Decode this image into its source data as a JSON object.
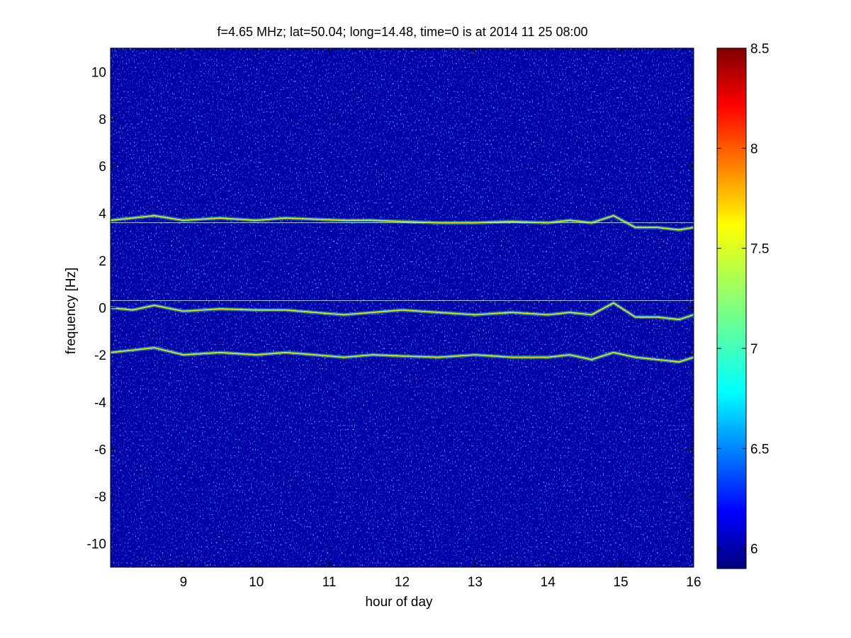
{
  "chart_data": {
    "type": "heatmap",
    "title": "f=4.65 MHz;  lat=50.04; long=14.48, time=0 is at 2014 11 25 08:00",
    "xlabel": "hour of day",
    "ylabel": "frequency [Hz]",
    "xlim": [
      8,
      16
    ],
    "ylim": [
      -11,
      11
    ],
    "x_ticks": [
      "9",
      "10",
      "11",
      "12",
      "13",
      "14",
      "15",
      "16"
    ],
    "x_tick_values": [
      9,
      10,
      11,
      12,
      13,
      14,
      15,
      16
    ],
    "y_ticks": [
      "10",
      "8",
      "6",
      "4",
      "2",
      "0",
      "-2",
      "-4",
      "-6",
      "-8",
      "-10"
    ],
    "y_tick_values": [
      10,
      8,
      6,
      4,
      2,
      0,
      -2,
      -4,
      -6,
      -8,
      -10
    ],
    "colormap": "jet",
    "colorbar": {
      "min": 5.9,
      "max": 8.5,
      "ticks": [
        "6",
        "6.5",
        "7",
        "7.5",
        "8",
        "8.5"
      ],
      "tick_values": [
        6,
        6.5,
        7,
        7.5,
        8,
        8.5
      ]
    },
    "background_level": 6.0,
    "traces": [
      {
        "x": [
          8.0,
          8.3,
          8.6,
          9.0,
          9.5,
          10.0,
          10.4,
          10.8,
          11.2,
          11.6,
          12.0,
          12.5,
          13.0,
          13.5,
          14.0,
          14.3,
          14.6,
          14.9,
          15.2,
          15.5,
          15.8,
          16.0
        ],
        "y": [
          3.7,
          3.8,
          3.9,
          3.7,
          3.8,
          3.7,
          3.8,
          3.75,
          3.7,
          3.7,
          3.65,
          3.6,
          3.6,
          3.65,
          3.6,
          3.7,
          3.6,
          3.9,
          3.4,
          3.4,
          3.3,
          3.4
        ]
      },
      {
        "x": [
          8.0,
          8.3,
          8.6,
          9.0,
          9.5,
          10.0,
          10.4,
          10.8,
          11.2,
          11.6,
          12.0,
          12.5,
          13.0,
          13.5,
          14.0,
          14.3,
          14.6,
          14.9,
          15.2,
          15.5,
          15.8,
          16.0
        ],
        "y": [
          0.0,
          -0.1,
          0.1,
          -0.15,
          -0.05,
          -0.1,
          -0.1,
          -0.2,
          -0.3,
          -0.2,
          -0.1,
          -0.2,
          -0.3,
          -0.2,
          -0.3,
          -0.2,
          -0.3,
          0.2,
          -0.4,
          -0.4,
          -0.5,
          -0.3
        ]
      },
      {
        "x": [
          8.0,
          8.3,
          8.6,
          9.0,
          9.5,
          10.0,
          10.4,
          10.8,
          11.2,
          11.6,
          12.0,
          12.5,
          13.0,
          13.5,
          14.0,
          14.3,
          14.6,
          14.9,
          15.2,
          15.5,
          15.8,
          16.0
        ],
        "y": [
          -1.9,
          -1.8,
          -1.7,
          -2.0,
          -1.9,
          -2.0,
          -1.9,
          -2.0,
          -2.1,
          -2.0,
          -2.05,
          -2.1,
          -2.0,
          -2.1,
          -2.1,
          -2.0,
          -2.2,
          -1.9,
          -2.1,
          -2.2,
          -2.3,
          -2.1
        ]
      }
    ],
    "reference_lines": [
      3.6,
      0.3
    ],
    "grid": false
  }
}
